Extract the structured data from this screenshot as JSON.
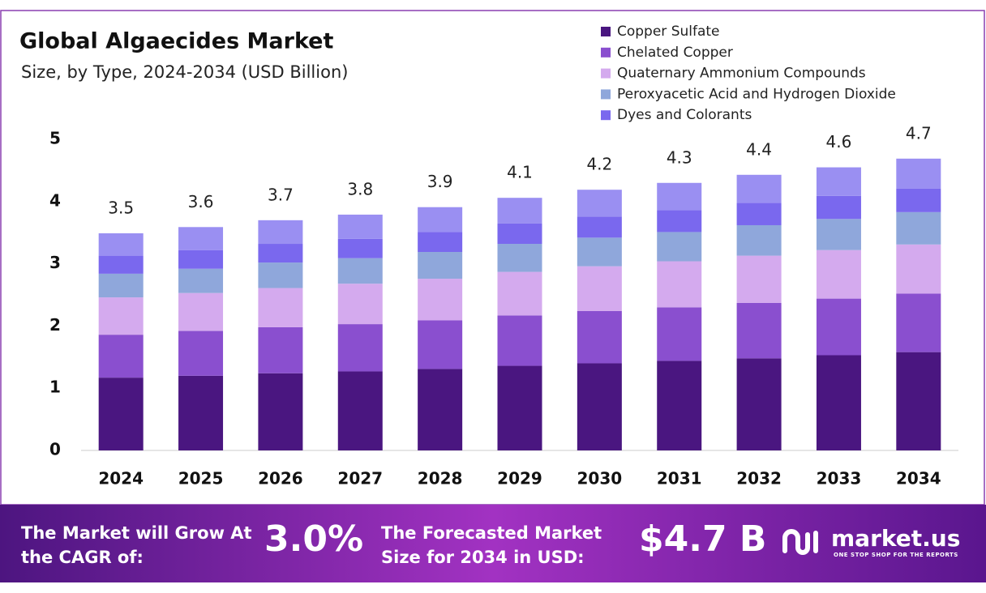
{
  "chart_data": {
    "type": "stacked-bar",
    "title": "Global Algaecides Market",
    "subtitle": "Size, by Type, 2024-2034 (USD Billion)",
    "categories": [
      "2024",
      "2025",
      "2026",
      "2027",
      "2028",
      "2029",
      "2030",
      "2031",
      "2032",
      "2033",
      "2034"
    ],
    "series": [
      {
        "name": "Copper Sulfate",
        "color": "#4a1680",
        "values": [
          1.17,
          1.2,
          1.24,
          1.27,
          1.31,
          1.36,
          1.4,
          1.44,
          1.48,
          1.53,
          1.58
        ]
      },
      {
        "name": "Chelated Copper",
        "color": "#8a4fcf",
        "values": [
          0.69,
          0.72,
          0.74,
          0.76,
          0.78,
          0.81,
          0.84,
          0.86,
          0.89,
          0.91,
          0.94
        ]
      },
      {
        "name": "Quaternary Ammonium Compounds",
        "color": "#d4aaee",
        "values": [
          0.6,
          0.61,
          0.63,
          0.65,
          0.67,
          0.7,
          0.72,
          0.74,
          0.76,
          0.78,
          0.79
        ]
      },
      {
        "name": "Peroxyacetic Acid and Hydrogen Dioxide",
        "color": "#8fa7db",
        "values": [
          0.38,
          0.39,
          0.41,
          0.41,
          0.43,
          0.45,
          0.46,
          0.47,
          0.49,
          0.5,
          0.52
        ]
      },
      {
        "name": "Dyes and Colorants",
        "color": "#7a68ee",
        "values": [
          0.29,
          0.3,
          0.3,
          0.31,
          0.32,
          0.33,
          0.34,
          0.35,
          0.36,
          0.37,
          0.38
        ]
      },
      {
        "color": "#9a8ff2",
        "values": [
          0.36,
          0.37,
          0.38,
          0.39,
          0.4,
          0.41,
          0.43,
          0.44,
          0.45,
          0.46,
          0.48
        ]
      }
    ],
    "totals": [
      3.5,
      3.6,
      3.7,
      3.8,
      3.9,
      4.1,
      4.2,
      4.3,
      4.4,
      4.6,
      4.7
    ],
    "ylim": [
      0,
      5
    ],
    "yticks": [
      0,
      1,
      2,
      3,
      4,
      5
    ],
    "grid": false
  },
  "footer": {
    "cagr_text": "The Market will Grow At the CAGR of:",
    "cagr_value": "3.0%",
    "forecast_text": "The Forecasted Market Size for 2034 in USD:",
    "forecast_value": "$4.7 B",
    "brand": "market.us",
    "tagline": "ONE STOP SHOP FOR THE REPORTS"
  }
}
